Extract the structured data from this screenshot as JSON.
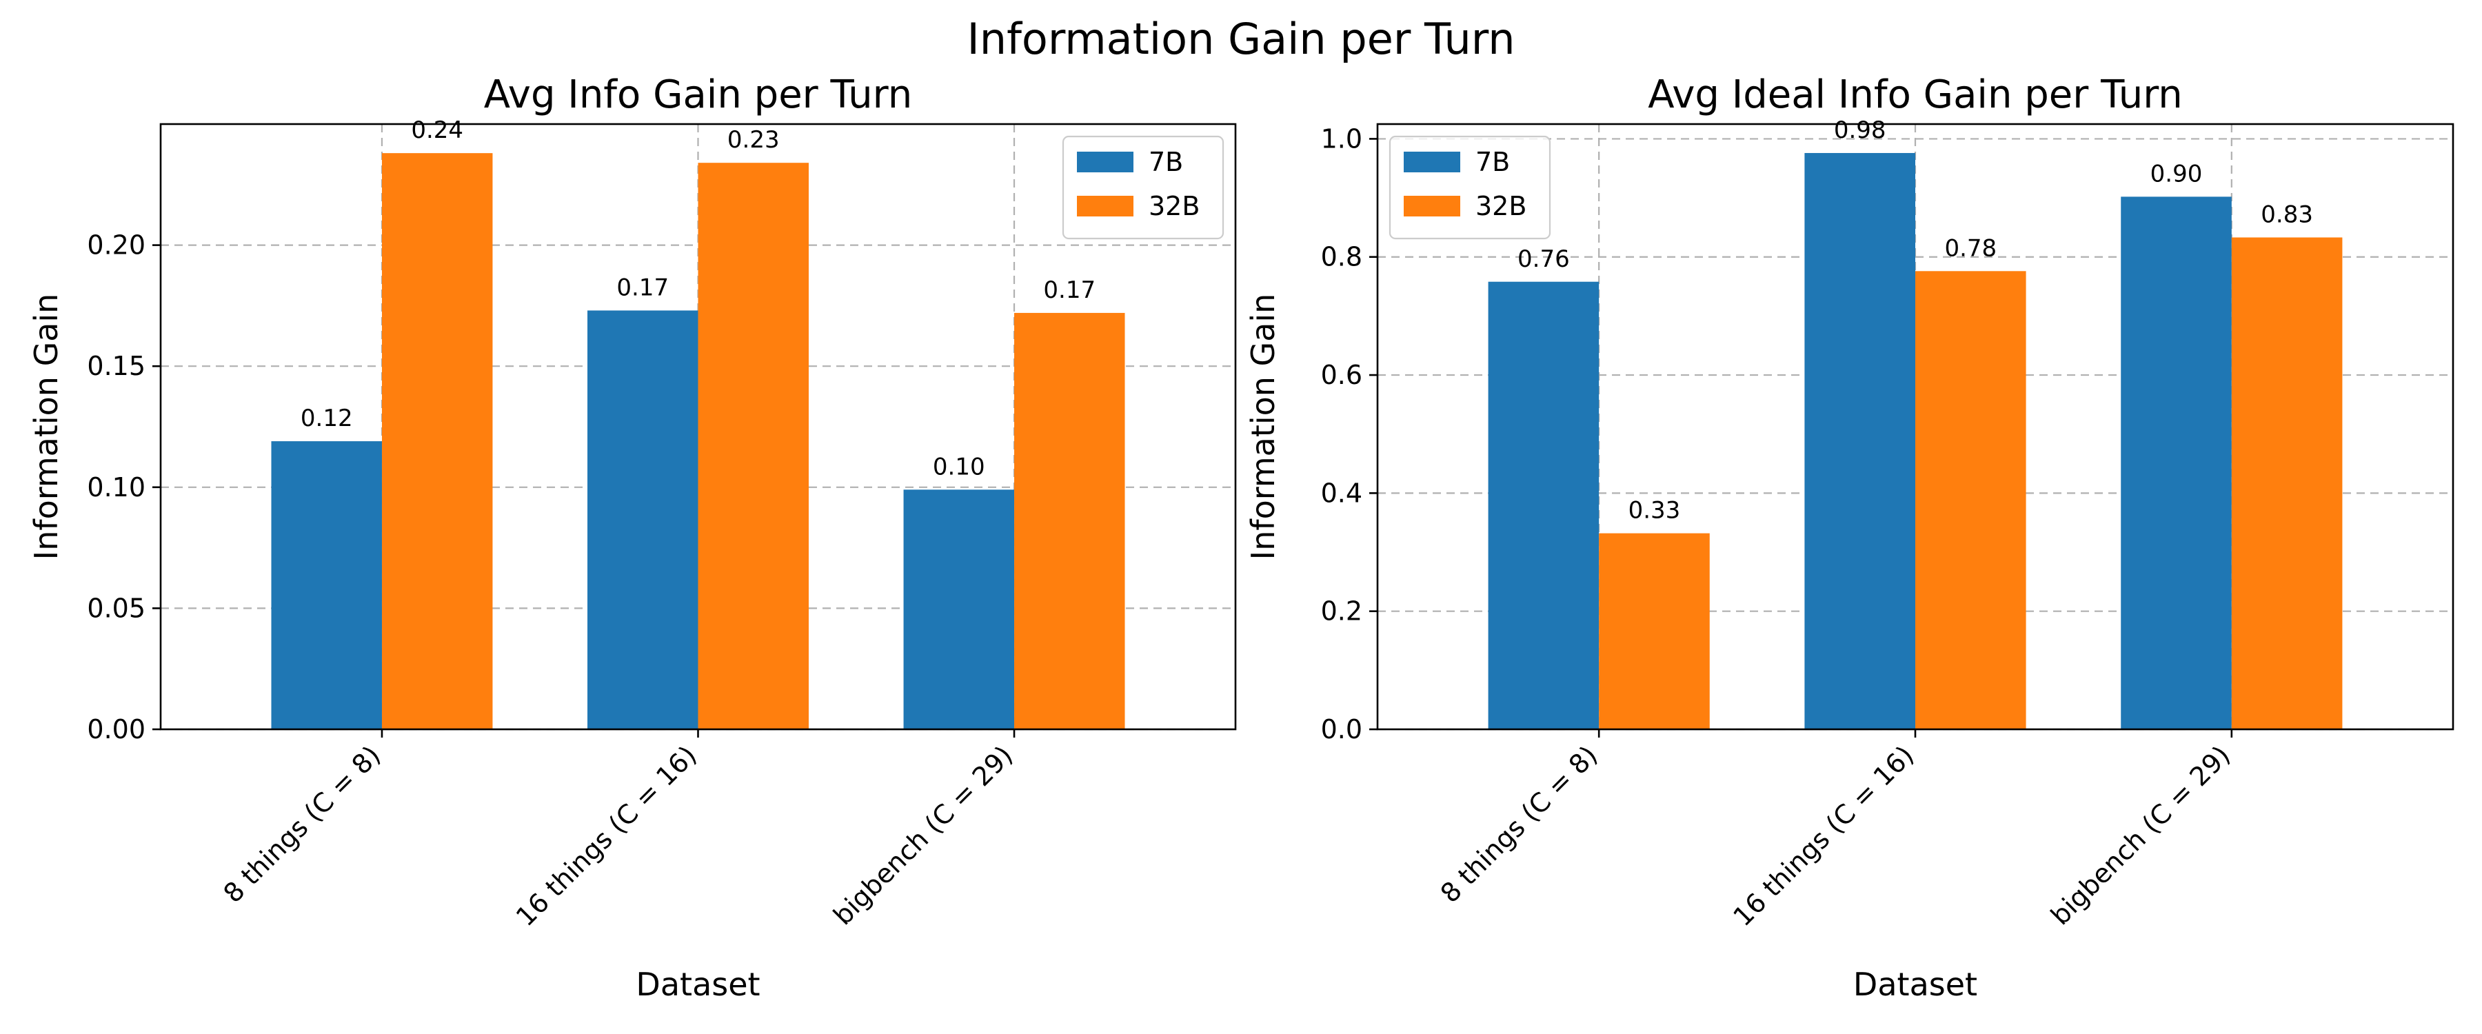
{
  "figure": {
    "suptitle": "Information Gain per Turn"
  },
  "chart_data": [
    {
      "type": "bar",
      "title": "Avg Info Gain per Turn",
      "xlabel": "Dataset",
      "ylabel": "Information Gain",
      "categories": [
        "8 things (C = 8)",
        "16 things (C = 16)",
        "bigbench (C = 29)"
      ],
      "series": [
        {
          "name": "7B",
          "color": "#1f77b4",
          "values": [
            0.119,
            0.173,
            0.099
          ],
          "labels": [
            "0.12",
            "0.17",
            "0.10"
          ]
        },
        {
          "name": "32B",
          "color": "#ff7f0e",
          "values": [
            0.238,
            0.234,
            0.172
          ],
          "labels": [
            "0.24",
            "0.23",
            "0.17"
          ]
        }
      ],
      "ylim": [
        0,
        0.25
      ],
      "yticks": [
        0.0,
        0.05,
        0.1,
        0.15,
        0.2
      ],
      "ytick_labels": [
        "0.00",
        "0.05",
        "0.10",
        "0.15",
        "0.20"
      ],
      "grid": true,
      "legend": "top-right"
    },
    {
      "type": "bar",
      "title": "Avg Ideal Info Gain per Turn",
      "xlabel": "Dataset",
      "ylabel": "Information Gain",
      "categories": [
        "8 things (C = 8)",
        "16 things (C = 16)",
        "bigbench (C = 29)"
      ],
      "series": [
        {
          "name": "7B",
          "color": "#1f77b4",
          "values": [
            0.758,
            0.976,
            0.902
          ],
          "labels": [
            "0.76",
            "0.98",
            "0.90"
          ]
        },
        {
          "name": "32B",
          "color": "#ff7f0e",
          "values": [
            0.332,
            0.776,
            0.833
          ],
          "labels": [
            "0.33",
            "0.78",
            "0.83"
          ]
        }
      ],
      "ylim": [
        0,
        1.025
      ],
      "yticks": [
        0.0,
        0.2,
        0.4,
        0.6,
        0.8,
        1.0
      ],
      "ytick_labels": [
        "0.0",
        "0.2",
        "0.4",
        "0.6",
        "0.8",
        "1.0"
      ],
      "grid": true,
      "legend": "top-left"
    }
  ]
}
